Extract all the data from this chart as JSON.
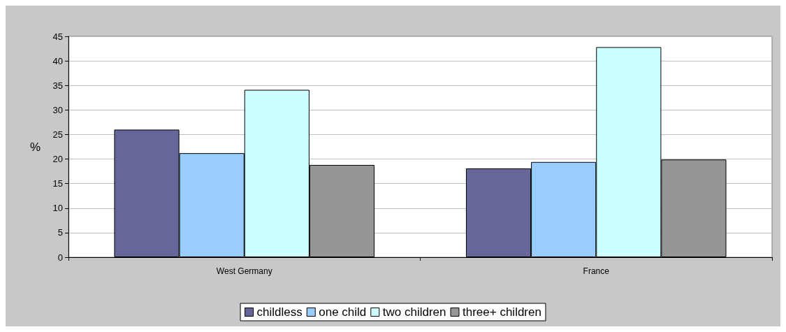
{
  "chart_data": {
    "type": "bar",
    "ylabel": "%",
    "categories": [
      "West Germany",
      "France"
    ],
    "series": [
      {
        "name": "childless",
        "color": "#666699",
        "values": [
          26.0,
          18.1
        ]
      },
      {
        "name": "one child",
        "color": "#99ccff",
        "values": [
          21.2,
          19.4
        ]
      },
      {
        "name": "two children",
        "color": "#ccffff",
        "values": [
          34.1,
          42.8
        ]
      },
      {
        "name": "three+ children",
        "color": "#969696",
        "values": [
          18.8,
          19.9
        ]
      }
    ],
    "ylim": [
      0,
      45
    ],
    "yticks": [
      0,
      5,
      10,
      15,
      20,
      25,
      30,
      35,
      40,
      45
    ],
    "grid": "y",
    "legend": "bottom"
  }
}
